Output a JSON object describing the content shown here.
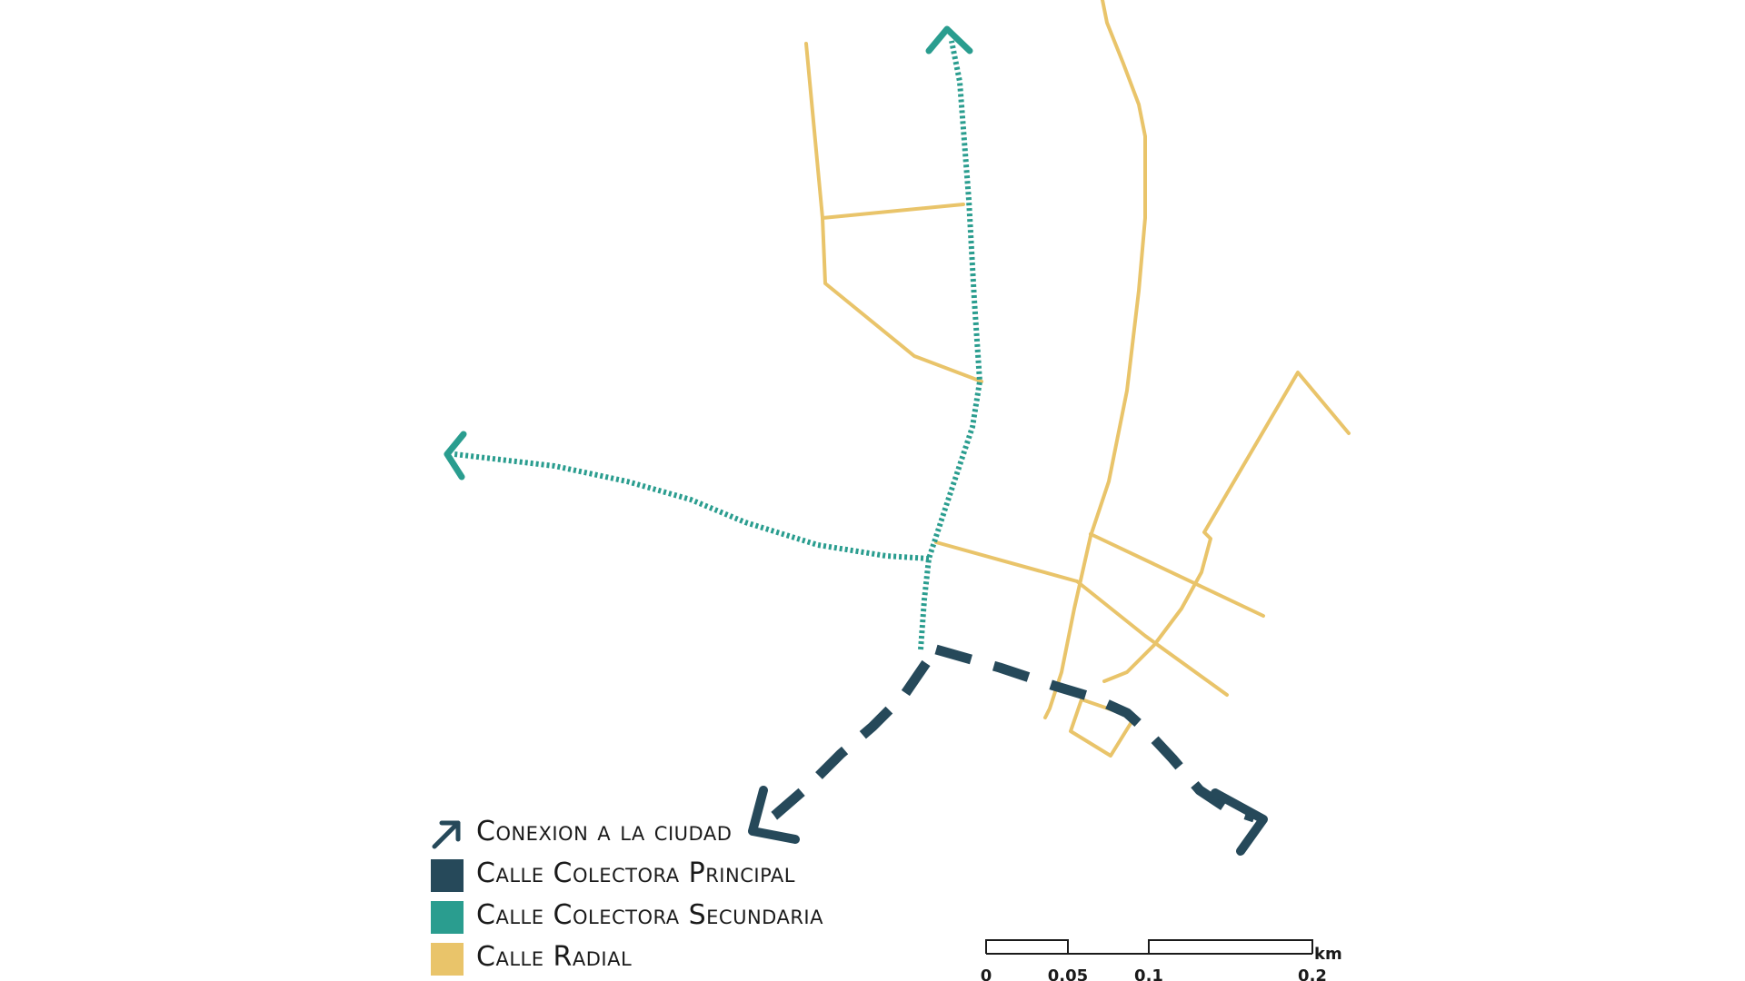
{
  "colors": {
    "principal": "#26495a",
    "secundaria": "#2a9d8f",
    "radial": "#e9c46a",
    "text": "#1a1a1a"
  },
  "legend": {
    "items": [
      {
        "label": "Conexion a la ciudad",
        "icon": "arrow-up-right-icon",
        "color": "#26495a"
      },
      {
        "label": "Calle Colectora Principal",
        "icon": "dark-square-swatch",
        "color": "#26495a"
      },
      {
        "label": "Calle Colectora Secundaria",
        "icon": "teal-square-swatch",
        "color": "#2a9d8f"
      },
      {
        "label": "Calle Radial",
        "icon": "yellow-square-swatch",
        "color": "#e9c46a"
      }
    ]
  },
  "scale_bar": {
    "unit": "km",
    "ticks": [
      "0",
      "0.05",
      "0.1",
      "0.2"
    ]
  }
}
